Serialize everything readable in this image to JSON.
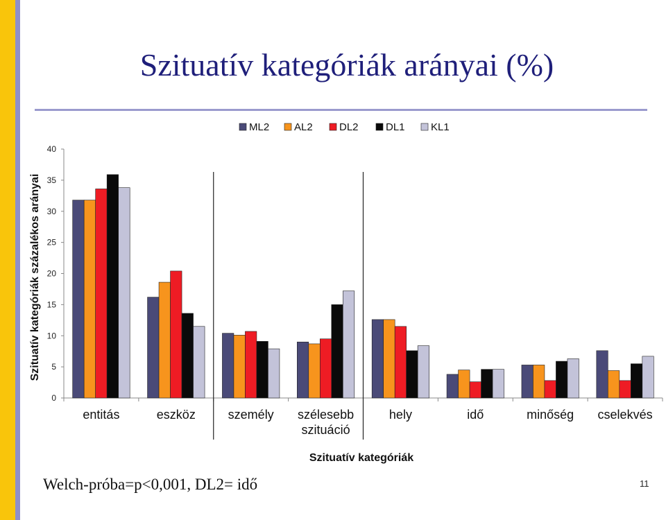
{
  "slide": {
    "title": "Szituatív kategóriák arányai (%)",
    "footer": "Welch-próba=p<0,001,  DL2= idő",
    "page_number": "11"
  },
  "chart_data": {
    "type": "bar",
    "xlabel": "Szituatív kategóriák",
    "ylabel": "Szituatív kategóriák százalékos arányai",
    "ylim": [
      0,
      40
    ],
    "yticks": [
      0,
      5,
      10,
      15,
      20,
      25,
      30,
      35,
      40
    ],
    "grid": false,
    "legend_position": "top",
    "categories": [
      "entitás",
      "eszköz",
      "személy",
      "szélesebb szituáció",
      "hely",
      "idő",
      "minőség",
      "cselekvés"
    ],
    "category_labels": [
      [
        "entitás"
      ],
      [
        "eszköz"
      ],
      [
        "személy"
      ],
      [
        "szélesebb",
        "szituáció"
      ],
      [
        "hely"
      ],
      [
        "idő"
      ],
      [
        "minőség"
      ],
      [
        "cselekvés"
      ]
    ],
    "series": [
      {
        "name": "ML2",
        "color": "#4a4a78",
        "values": [
          31.8,
          16.2,
          10.4,
          9.0,
          12.6,
          3.8,
          5.3,
          7.6
        ]
      },
      {
        "name": "AL2",
        "color": "#f7941d",
        "values": [
          31.8,
          18.6,
          10.1,
          8.7,
          12.6,
          4.5,
          5.3,
          4.4
        ]
      },
      {
        "name": "DL2",
        "color": "#ee1c24",
        "values": [
          33.6,
          20.4,
          10.7,
          9.5,
          11.5,
          2.6,
          2.8,
          2.8
        ]
      },
      {
        "name": "DL1",
        "color": "#0a0a0a",
        "values": [
          35.9,
          13.6,
          9.1,
          15.0,
          7.6,
          4.6,
          5.9,
          5.5
        ]
      },
      {
        "name": "KL1",
        "color": "#c3c3d9",
        "values": [
          33.8,
          11.5,
          7.9,
          17.2,
          8.4,
          4.6,
          6.3,
          6.7
        ]
      }
    ],
    "separators_after_categories": [
      1,
      3
    ]
  }
}
